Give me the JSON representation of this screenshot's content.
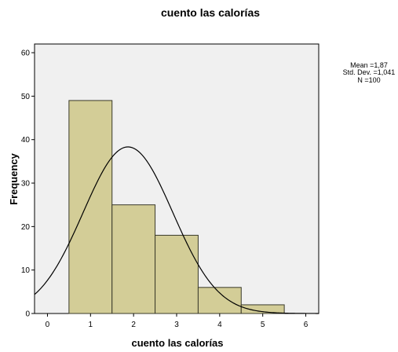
{
  "chart_data": {
    "type": "bar",
    "title": "cuento las calorías",
    "xlabel": "cuento las calorías",
    "ylabel": "Frequency",
    "xlim": [
      -0.3,
      6.3
    ],
    "ylim": [
      0,
      62
    ],
    "x_ticks": [
      0,
      1,
      2,
      3,
      4,
      5,
      6
    ],
    "y_ticks": [
      0,
      10,
      20,
      30,
      40,
      50,
      60
    ],
    "bins": [
      {
        "start": 0.5,
        "end": 1.5,
        "value": 49
      },
      {
        "start": 1.5,
        "end": 2.5,
        "value": 25
      },
      {
        "start": 2.5,
        "end": 3.5,
        "value": 18
      },
      {
        "start": 3.5,
        "end": 4.5,
        "value": 6
      },
      {
        "start": 4.5,
        "end": 5.5,
        "value": 2
      }
    ],
    "normal_curve": {
      "mean": 1.87,
      "std": 1.041,
      "n": 100,
      "bin_width": 1
    },
    "stats": {
      "mean_line": "Mean =1,87",
      "std_line": "Std. Dev. =1,041",
      "n_line": "N =100"
    },
    "grid": false,
    "legend_position": "top-right",
    "colors": {
      "bar_fill": "#d3cd97",
      "bar_stroke": "#3a3a2a",
      "plot_background": "#f0f0f0",
      "curve": "#000000"
    }
  }
}
